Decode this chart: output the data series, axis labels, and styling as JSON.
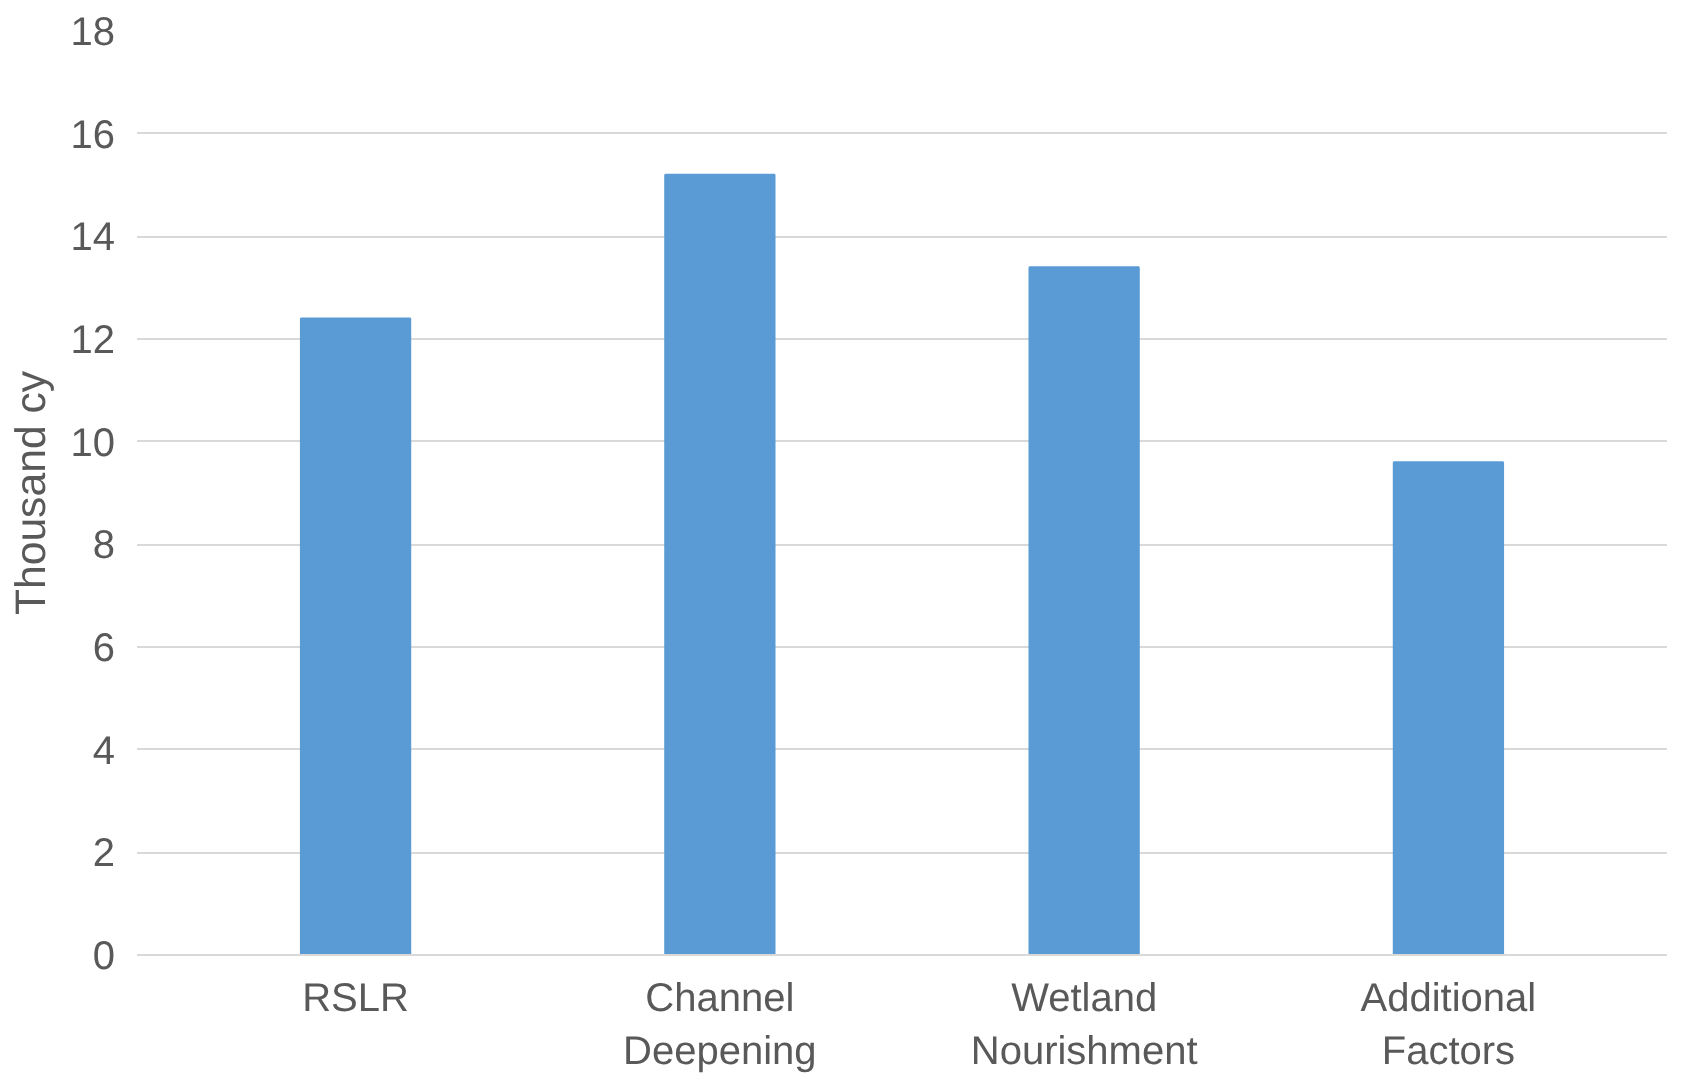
{
  "chart_data": {
    "type": "bar",
    "ylabel": "Thousand cy",
    "categories": [
      "RSLR",
      "Channel Deepening",
      "Wetland Nourishment",
      "Additional Factors"
    ],
    "values": [
      12.4,
      15.2,
      13.4,
      9.6
    ],
    "color": "#5b9bd5",
    "ylim": [
      0,
      18
    ],
    "yticks": [
      0,
      2,
      4,
      6,
      8,
      10,
      12,
      14,
      16,
      18
    ],
    "grid": "y"
  }
}
